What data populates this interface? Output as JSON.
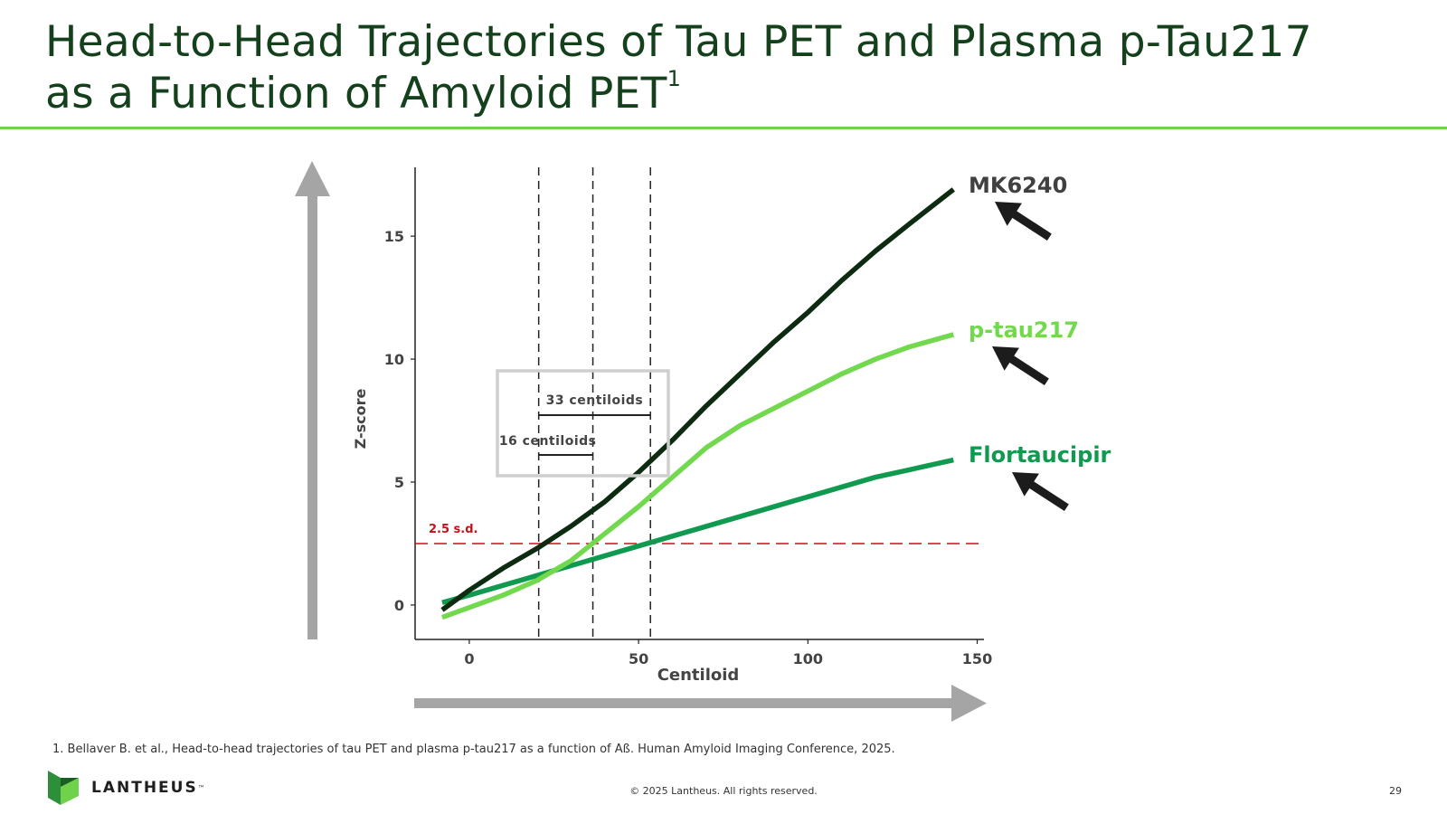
{
  "slide": {
    "title_line1": "Head-to-Head Trajectories of Tau PET and Plasma p-Tau217",
    "title_line2": "as a Function of Amyloid PET",
    "title_superscript": "1",
    "footnote": "1. Bellaver B. et al., Head-to-head trajectories of tau PET and plasma p-tau217 as a function of Aß. Human Amyloid Imaging Conference, 2025.",
    "copyright": "© 2025 Lantheus. All rights reserved.",
    "page_number": "29",
    "logo_text": "LANTHEUS",
    "logo_tm": "™"
  },
  "colors": {
    "title": "#14401c",
    "rule": "#6fd24a",
    "mk6240": "#0d2b10",
    "ptau217": "#72d94f",
    "flortaucipir": "#0f9a4f",
    "threshold": "#c8101b",
    "arrow_gray": "#a5a5a5",
    "pointer_arrow": "#1c1c1c"
  },
  "chart_data": {
    "type": "line",
    "xlabel": "Centiloid",
    "ylabel": "Z-score",
    "xlim": [
      -16,
      152
    ],
    "ylim": [
      -1.4,
      17.8
    ],
    "x_ticks": [
      0,
      50,
      100,
      150
    ],
    "y_ticks": [
      0,
      5,
      10,
      15
    ],
    "series": [
      {
        "name": "MK6240",
        "color_key": "mk6240",
        "x": [
          -8,
          0,
          10,
          20,
          30,
          40,
          50,
          60,
          70,
          80,
          90,
          100,
          110,
          120,
          130,
          143
        ],
        "y": [
          -0.2,
          0.6,
          1.5,
          2.3,
          3.2,
          4.2,
          5.4,
          6.7,
          8.1,
          9.4,
          10.7,
          11.9,
          13.2,
          14.4,
          15.5,
          16.9
        ]
      },
      {
        "name": "p-tau217",
        "color_key": "ptau217",
        "x": [
          -8,
          0,
          10,
          20,
          30,
          40,
          50,
          60,
          70,
          80,
          90,
          100,
          110,
          120,
          130,
          143
        ],
        "y": [
          -0.5,
          -0.1,
          0.4,
          1.0,
          1.8,
          2.9,
          4.0,
          5.2,
          6.4,
          7.3,
          8.0,
          8.7,
          9.4,
          10.0,
          10.5,
          11.0
        ]
      },
      {
        "name": "Flortaucipir",
        "color_key": "flortaucipir",
        "x": [
          -8,
          0,
          10,
          20,
          30,
          40,
          50,
          60,
          70,
          80,
          90,
          100,
          110,
          120,
          130,
          143
        ],
        "y": [
          0.1,
          0.4,
          0.8,
          1.2,
          1.6,
          2.0,
          2.4,
          2.8,
          3.2,
          3.6,
          4.0,
          4.4,
          4.8,
          5.2,
          5.5,
          5.9
        ]
      }
    ],
    "threshold": {
      "y": 2.5,
      "label": "2.5 s.d."
    },
    "vertical_lines_x": [
      20.5,
      36.5,
      53.5
    ],
    "brackets": [
      {
        "label": "33 centiloids",
        "from": 20.5,
        "to": 53.5
      },
      {
        "label": "16 centiloids",
        "from": 20.5,
        "to": 36.5
      }
    ]
  }
}
